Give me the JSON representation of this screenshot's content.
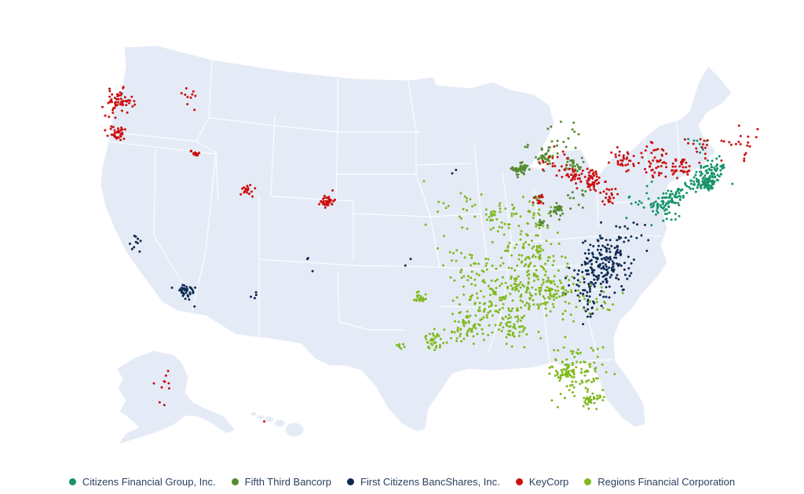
{
  "map": {
    "region": "United States",
    "background_land_color": "#e5ebf6",
    "border_color": "#ffffff"
  },
  "chart_data": {
    "type": "scatter",
    "kind": "geo-scatter",
    "legend_position": "bottom",
    "series": [
      {
        "name": "Citizens Financial Group, Inc.",
        "color": "#16936a",
        "clusters": [
          {
            "lon": -71.2,
            "lat": 42.3,
            "spread": 0.7,
            "count": 70
          },
          {
            "lon": -71.5,
            "lat": 41.75,
            "spread": 0.35,
            "count": 40
          },
          {
            "lon": -72.6,
            "lat": 41.6,
            "spread": 0.5,
            "count": 25
          },
          {
            "lon": -74.1,
            "lat": 40.7,
            "spread": 0.5,
            "count": 40
          },
          {
            "lon": -75.2,
            "lat": 40.0,
            "spread": 0.5,
            "count": 40
          },
          {
            "lon": -77.0,
            "lat": 40.2,
            "spread": 0.8,
            "count": 15
          },
          {
            "lon": -70.9,
            "lat": 43.1,
            "spread": 0.4,
            "count": 15
          },
          {
            "lon": -72.6,
            "lat": 44.4,
            "spread": 0.4,
            "count": 8
          },
          {
            "lon": -74.8,
            "lat": 39.4,
            "spread": 0.5,
            "count": 12
          }
        ]
      },
      {
        "name": "Fifth Third Bancorp",
        "color": "#558b2f",
        "clusters": [
          {
            "lon": -87.8,
            "lat": 41.9,
            "spread": 0.35,
            "count": 45
          },
          {
            "lon": -85.7,
            "lat": 42.9,
            "spread": 0.4,
            "count": 25
          },
          {
            "lon": -83.2,
            "lat": 42.4,
            "spread": 0.35,
            "count": 25
          },
          {
            "lon": -84.5,
            "lat": 39.1,
            "spread": 0.3,
            "count": 30
          },
          {
            "lon": -86.2,
            "lat": 39.8,
            "spread": 0.3,
            "count": 12
          },
          {
            "lon": -85.8,
            "lat": 38.2,
            "spread": 0.2,
            "count": 10
          },
          {
            "lon": -84.8,
            "lat": 43.8,
            "spread": 1.2,
            "count": 25
          },
          {
            "lon": -82.9,
            "lat": 40.0,
            "spread": 0.4,
            "count": 12
          }
        ]
      },
      {
        "name": "First Citizens BancShares, Inc.",
        "color": "#0d2a52",
        "clusters": [
          {
            "lon": -79.8,
            "lat": 35.6,
            "spread": 1.2,
            "count": 150
          },
          {
            "lon": -81.0,
            "lat": 34.0,
            "spread": 1.0,
            "count": 55
          },
          {
            "lon": -78.6,
            "lat": 37.4,
            "spread": 1.0,
            "count": 25
          },
          {
            "lon": -118.2,
            "lat": 34.0,
            "spread": 0.5,
            "count": 35
          },
          {
            "lon": -122.3,
            "lat": 37.7,
            "spread": 0.5,
            "count": 10
          },
          {
            "lon": -81.0,
            "lat": 32.3,
            "spread": 0.4,
            "count": 10
          },
          {
            "lon": -106.6,
            "lat": 35.1,
            "spread": 0.5,
            "count": 3
          },
          {
            "lon": -112.0,
            "lat": 33.4,
            "spread": 0.5,
            "count": 4
          },
          {
            "lon": -93.6,
            "lat": 41.6,
            "spread": 0.3,
            "count": 2
          },
          {
            "lon": -97.5,
            "lat": 35.5,
            "spread": 0.3,
            "count": 2
          }
        ]
      },
      {
        "name": "KeyCorp",
        "color": "#cc1010",
        "clusters": [
          {
            "lon": -122.3,
            "lat": 47.6,
            "spread": 0.6,
            "count": 60
          },
          {
            "lon": -122.7,
            "lat": 45.5,
            "spread": 0.4,
            "count": 35
          },
          {
            "lon": -116.5,
            "lat": 47.7,
            "spread": 0.6,
            "count": 10
          },
          {
            "lon": -116.2,
            "lat": 43.6,
            "spread": 0.2,
            "count": 12
          },
          {
            "lon": -111.9,
            "lat": 40.7,
            "spread": 0.3,
            "count": 20
          },
          {
            "lon": -104.9,
            "lat": 39.7,
            "spread": 0.3,
            "count": 40
          },
          {
            "lon": -81.7,
            "lat": 41.4,
            "spread": 0.6,
            "count": 60
          },
          {
            "lon": -83.5,
            "lat": 41.6,
            "spread": 0.4,
            "count": 20
          },
          {
            "lon": -78.8,
            "lat": 42.9,
            "spread": 0.6,
            "count": 30
          },
          {
            "lon": -76.1,
            "lat": 43.0,
            "spread": 0.9,
            "count": 45
          },
          {
            "lon": -73.8,
            "lat": 42.7,
            "spread": 0.5,
            "count": 35
          },
          {
            "lon": -86.1,
            "lat": 39.8,
            "spread": 0.3,
            "count": 15
          },
          {
            "lon": -80.0,
            "lat": 40.4,
            "spread": 0.5,
            "count": 20
          },
          {
            "lon": -84.6,
            "lat": 42.7,
            "spread": 0.8,
            "count": 20
          },
          {
            "lon": -68.8,
            "lat": 44.8,
            "spread": 0.8,
            "count": 20
          },
          {
            "lon": -72.5,
            "lat": 44.3,
            "spread": 0.7,
            "count": 15
          },
          {
            "lon": -149.9,
            "lat": 61.2,
            "spread": 2.0,
            "count": 10
          },
          {
            "lon": -157.9,
            "lat": 21.3,
            "spread": 0.3,
            "count": 1
          }
        ]
      },
      {
        "name": "Regions Financial Corporation",
        "color": "#80b91f",
        "clusters": [
          {
            "lon": -86.8,
            "lat": 33.5,
            "spread": 1.8,
            "count": 140
          },
          {
            "lon": -86.8,
            "lat": 36.1,
            "spread": 1.5,
            "count": 80
          },
          {
            "lon": -90.0,
            "lat": 32.5,
            "spread": 1.5,
            "count": 80
          },
          {
            "lon": -92.2,
            "lat": 30.7,
            "spread": 1.0,
            "count": 60
          },
          {
            "lon": -81.8,
            "lat": 28.0,
            "spread": 1.4,
            "count": 100
          },
          {
            "lon": -84.3,
            "lat": 33.7,
            "spread": 1.3,
            "count": 70
          },
          {
            "lon": -92.3,
            "lat": 34.8,
            "spread": 1.1,
            "count": 40
          },
          {
            "lon": -95.4,
            "lat": 29.8,
            "spread": 0.4,
            "count": 35
          },
          {
            "lon": -96.8,
            "lat": 32.8,
            "spread": 0.4,
            "count": 20
          },
          {
            "lon": -98.5,
            "lat": 29.4,
            "spread": 0.2,
            "count": 8
          },
          {
            "lon": -87.7,
            "lat": 38.5,
            "spread": 1.5,
            "count": 45
          },
          {
            "lon": -93.3,
            "lat": 39.0,
            "spread": 1.5,
            "count": 25
          },
          {
            "lon": -80.2,
            "lat": 26.0,
            "spread": 0.4,
            "count": 30
          },
          {
            "lon": -82.7,
            "lat": 27.9,
            "spread": 0.4,
            "count": 25
          },
          {
            "lon": -88.1,
            "lat": 30.7,
            "spread": 0.6,
            "count": 30
          },
          {
            "lon": -90.2,
            "lat": 38.6,
            "spread": 0.3,
            "count": 15
          },
          {
            "lon": -80.0,
            "lat": 33.0,
            "spread": 0.8,
            "count": 15
          }
        ]
      }
    ]
  }
}
